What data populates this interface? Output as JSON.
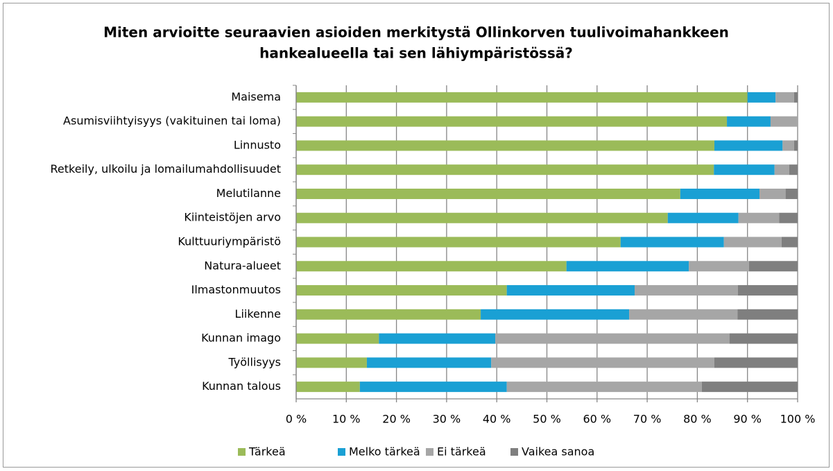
{
  "chart_data": {
    "type": "stacked_barh",
    "title": [
      "Miten arvioitte seuraavien asioiden merkitystä Ollinkorven tuulivoimahankkeen",
      "hankealueella tai sen lähiympäristössä?"
    ],
    "categories": [
      "Maisema",
      "Asumisviihtyisyys (vakituinen tai loma)",
      "Linnusto",
      "Retkeily, ulkoilu ja lomailumahdollisuudet",
      "Melutilanne",
      "Kiinteistöjen arvo",
      "Kulttuuriympäristö",
      "Natura-alueet",
      "Ilmastonmuutos",
      "Liikenne",
      "Kunnan imago",
      "Työllisyys",
      "Kunnan talous"
    ],
    "series": [
      {
        "name": "Tärkeä",
        "color": "#9bbb59",
        "values": [
          90.0,
          85.9,
          83.4,
          83.3,
          76.6,
          74.1,
          64.7,
          53.9,
          42.0,
          36.8,
          16.5,
          14.1,
          12.7
        ]
      },
      {
        "name": "Melko tärkeä",
        "color": "#1aa0d4",
        "values": [
          5.6,
          8.7,
          13.6,
          12.1,
          15.8,
          14.1,
          20.6,
          24.4,
          25.5,
          29.6,
          23.2,
          24.8,
          29.3
        ]
      },
      {
        "name": "Ei tärkeä",
        "color": "#a6a6a6",
        "values": [
          3.7,
          5.4,
          2.3,
          2.9,
          5.2,
          8.1,
          11.5,
          12.0,
          20.6,
          21.6,
          46.7,
          44.5,
          38.9
        ]
      },
      {
        "name": "Vaikea sanoa",
        "color": "#7f7f7f",
        "values": [
          0.7,
          0,
          0.7,
          1.7,
          2.4,
          3.7,
          3.2,
          9.7,
          11.9,
          12.0,
          13.6,
          16.6,
          19.1
        ]
      }
    ],
    "xlim": [
      0,
      100
    ],
    "xticks": [
      {
        "value": 0,
        "label": "0 %"
      },
      {
        "value": 10,
        "label": "10 %"
      },
      {
        "value": 20,
        "label": "20 %"
      },
      {
        "value": 30,
        "label": "30 %"
      },
      {
        "value": 40,
        "label": "40 %"
      },
      {
        "value": 50,
        "label": "50 %"
      },
      {
        "value": 60,
        "label": "60 %"
      },
      {
        "value": 70,
        "label": "70 %"
      },
      {
        "value": 80,
        "label": "80 %"
      },
      {
        "value": 90,
        "label": "90 %"
      },
      {
        "value": 100,
        "label": "100 %"
      }
    ],
    "grid": true,
    "legend": "bottom"
  }
}
